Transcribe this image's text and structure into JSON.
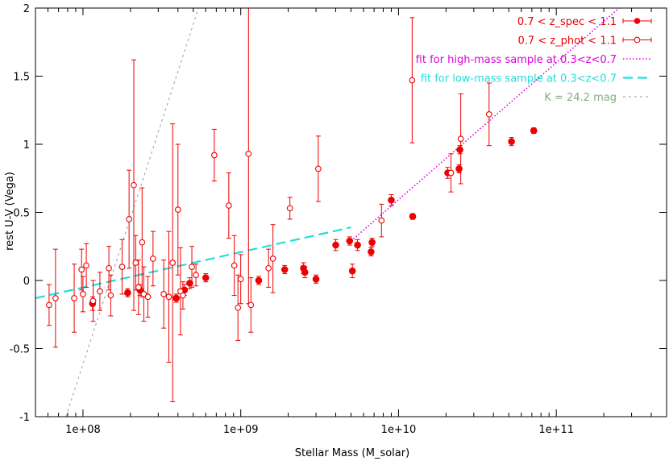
{
  "chart_data": {
    "type": "scatter",
    "xlabel": "Stellar Mass (M_solar)",
    "ylabel": "rest U-V (Vega)",
    "xscale": "log",
    "xlim": [
      50000000,
      500000000000
    ],
    "ylim": [
      -1,
      2
    ],
    "x_tick_values": [
      100000000,
      1000000000,
      10000000000,
      100000000000
    ],
    "x_tick_labels": [
      "1e+08",
      "1e+09",
      "1e+10",
      "1e+11"
    ],
    "y_tick_values": [
      -1,
      -0.5,
      0,
      0.5,
      1,
      1.5,
      2
    ],
    "y_tick_labels": [
      "-1",
      "-0.5",
      "0",
      "0.5",
      "1",
      "1.5",
      "2"
    ],
    "legend_position": "top-right",
    "grid": false,
    "series": [
      {
        "name": "0.7 < z_spec < 1.1",
        "marker": "filled-circle",
        "color": "#ee0000",
        "points": [
          [
            115000000,
            -0.17,
            0.05
          ],
          [
            192000000,
            -0.09,
            0.03
          ],
          [
            230000000,
            -0.07,
            0.04
          ],
          [
            390000000,
            -0.13,
            0.03
          ],
          [
            440000000,
            -0.07,
            0.04
          ],
          [
            475000000,
            -0.02,
            0.04
          ],
          [
            600000000,
            0.02,
            0.03
          ],
          [
            1300000000,
            0.0,
            0.03
          ],
          [
            1900000000,
            0.08,
            0.03
          ],
          [
            2500000000,
            0.09,
            0.04
          ],
          [
            2550000000,
            0.06,
            0.04
          ],
          [
            3000000000,
            0.01,
            0.03
          ],
          [
            4000000000,
            0.26,
            0.04
          ],
          [
            4900000000,
            0.29,
            0.03
          ],
          [
            5100000000,
            0.07,
            0.05
          ],
          [
            5500000000,
            0.26,
            0.04
          ],
          [
            6700000000,
            0.21,
            0.03
          ],
          [
            6800000000,
            0.28,
            0.03
          ],
          [
            9000000000,
            0.59,
            0.04
          ],
          [
            12300000000,
            0.47,
            0.02
          ],
          [
            20500000000,
            0.79,
            0.04
          ],
          [
            24200000000,
            0.82,
            0.03
          ],
          [
            24500000000,
            0.96,
            0.03
          ],
          [
            52000000000,
            1.02,
            0.03
          ],
          [
            72000000000,
            1.1,
            0.02
          ]
        ]
      },
      {
        "name": "0.7 < z_phot < 1.1",
        "marker": "open-circle",
        "color": "#ee0000",
        "points": [
          [
            61000000,
            -0.18,
            0.15
          ],
          [
            67000000,
            -0.13,
            0.36
          ],
          [
            88000000,
            -0.13,
            0.25
          ],
          [
            98000000,
            0.08,
            0.15
          ],
          [
            100000000,
            -0.1,
            0.13
          ],
          [
            105000000,
            0.11,
            0.16
          ],
          [
            116000000,
            -0.15,
            0.15
          ],
          [
            128000000,
            -0.08,
            0.14
          ],
          [
            146000000,
            0.09,
            0.16
          ],
          [
            150000000,
            -0.11,
            0.15
          ],
          [
            177000000,
            0.1,
            0.2
          ],
          [
            196000000,
            0.45,
            0.36
          ],
          [
            210000000,
            0.7,
            0.92
          ],
          [
            216000000,
            0.13,
            0.2
          ],
          [
            225000000,
            -0.05,
            0.2
          ],
          [
            237000000,
            0.28,
            0.4
          ],
          [
            243000000,
            -0.1,
            0.2
          ],
          [
            258000000,
            -0.12,
            0.15
          ],
          [
            278000000,
            0.16,
            0.2
          ],
          [
            325000000,
            -0.1,
            0.25
          ],
          [
            350000000,
            -0.12,
            0.48
          ],
          [
            370000000,
            0.13,
            1.02
          ],
          [
            400000000,
            0.52,
            0.48
          ],
          [
            415000000,
            -0.08,
            0.32
          ],
          [
            430000000,
            -0.11,
            0.1
          ],
          [
            490000000,
            0.1,
            0.15
          ],
          [
            520000000,
            0.04,
            0.08
          ],
          [
            680000000,
            0.92,
            0.19
          ],
          [
            840000000,
            0.55,
            0.24
          ],
          [
            910000000,
            0.11,
            0.22
          ],
          [
            960000000,
            -0.2,
            0.24
          ],
          [
            1000000000,
            0.01,
            0.18
          ],
          [
            1120000000,
            0.93,
            1.1
          ],
          [
            1160000000,
            -0.18,
            0.2
          ],
          [
            1500000000,
            0.09,
            0.14
          ],
          [
            1600000000,
            0.16,
            0.25
          ],
          [
            2050000000,
            0.53,
            0.08
          ],
          [
            3100000000,
            0.82,
            0.24
          ],
          [
            7800000000,
            0.44,
            0.12
          ],
          [
            12200000000,
            1.47,
            0.46
          ],
          [
            21500000000,
            0.79,
            0.14
          ],
          [
            24800000000,
            1.04,
            0.33
          ],
          [
            37500000000,
            1.22,
            0.23
          ]
        ]
      },
      {
        "name": "fit for high-mass sample at 0.3<z<0.7",
        "kind": "line",
        "style": "dotted",
        "color": "#dd00dd",
        "x": [
          5000000000,
          250000000000
        ],
        "y": [
          0.29,
          2.0
        ]
      },
      {
        "name": "fit for low-mass sample at 0.3<z<0.7",
        "kind": "line",
        "style": "dashed",
        "color": "#22dddd",
        "x": [
          50000000,
          5000000000
        ],
        "y": [
          -0.13,
          0.39
        ]
      },
      {
        "name": "K = 24.2 mag",
        "kind": "line",
        "style": "dashed-gray",
        "color": "#999999",
        "x": [
          78000000,
          540000000
        ],
        "y": [
          -1.0,
          2.0
        ]
      }
    ]
  }
}
